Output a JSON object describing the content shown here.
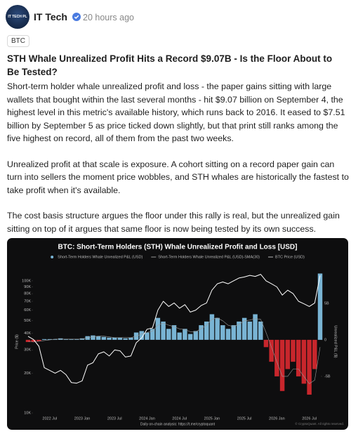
{
  "post": {
    "avatar_text": "IT TECH PL",
    "author": "IT Tech",
    "time": "20 hours ago",
    "tag": "BTC",
    "title": "STH Whale Unrealized Profit Hits a Record $9.07B - Is the Floor About to Be Tested?",
    "paragraphs": [
      "Short-term holder whale unrealized profit and loss - the paper gains sitting with large wallets that bought within the last several months - hit $9.07 billion on September 4, the highest level in this metric's available history, which runs back to 2016. It eased to $7.51 billion by September 5 as price ticked down slightly, but that print still ranks among the five highest on record, all of them from the past two weeks.",
      "Unrealized profit at that scale is exposure. A cohort sitting on a record paper gain can turn into sellers the moment price wobbles, and STH whales are historically the fastest to take profit when it's available.",
      "The cost basis structure argues the floor under this rally is real, but the unrealized gain sitting on top of it argues that same floor is now being tested by its own success."
    ]
  },
  "chart_data": {
    "type": "combo",
    "title": "BTC: Short-Term Holders (STH) Whale Unrealized Profit and Loss [USD]",
    "x": [
      null,
      null,
      null,
      null,
      "2022 Jul",
      null,
      null,
      null,
      null,
      null,
      "2023 Jan",
      null,
      null,
      null,
      null,
      null,
      "2023 Jul",
      null,
      null,
      null,
      null,
      null,
      "2024 Jan",
      null,
      null,
      null,
      null,
      null,
      "2024 Jul",
      null,
      null,
      null,
      null,
      null,
      "2025 Jan",
      null,
      null,
      null,
      null,
      null,
      "2025 Jul",
      null,
      null,
      null,
      null,
      null,
      "2026 Jan",
      null,
      null,
      null,
      null,
      null,
      "2026 Jul",
      null,
      null
    ],
    "series": [
      {
        "name": "Short-Term Holders Whale Unrealized P&L (USD)",
        "type": "bar",
        "axis": "y2",
        "color": "#79b4d4",
        "negative_color": "#c8262c",
        "values": [
          -300000000.0,
          -300000000.0,
          -200000000.0,
          100000000.0,
          100000000.0,
          100000000.0,
          200000000.0,
          100000000.0,
          100000000.0,
          100000000.0,
          200000000.0,
          500000000.0,
          600000000.0,
          500000000.0,
          400000000.0,
          300000000.0,
          300000000.0,
          300000000.0,
          200000000.0,
          300000000.0,
          1000000000.0,
          1200000000.0,
          1000000000.0,
          1500000000.0,
          3000000000.0,
          2500000000.0,
          1500000000.0,
          2000000000.0,
          1000000000.0,
          1500000000.0,
          800000000.0,
          1200000000.0,
          2000000000.0,
          2500000000.0,
          3500000000.0,
          3000000000.0,
          2000000000.0,
          1500000000.0,
          2000000000.0,
          2500000000.0,
          3000000000.0,
          2500000000.0,
          3500000000.0,
          2500000000.0,
          -1000000000.0,
          -3000000000.0,
          -5000000000.0,
          -7000000000.0,
          -4000000000.0,
          -3000000000.0,
          -5000000000.0,
          -6000000000.0,
          -7500000000.0,
          -4000000000.0,
          9070000000.0
        ]
      },
      {
        "name": "Short-Term Holders Whale Unrealized P&L (USD)-SMA(30)",
        "type": "line",
        "axis": "y2",
        "color": "#9a9a9a",
        "values": [
          -200000000.0,
          -300000000.0,
          -200000000.0,
          -100000000.0,
          0,
          100000000.0,
          100000000.0,
          100000000.0,
          100000000.0,
          100000000.0,
          100000000.0,
          300000000.0,
          400000000.0,
          500000000.0,
          500000000.0,
          400000000.0,
          300000000.0,
          300000000.0,
          300000000.0,
          300000000.0,
          500000000.0,
          800000000.0,
          1000000000.0,
          1200000000.0,
          2000000000.0,
          2300000000.0,
          2000000000.0,
          1800000000.0,
          1500000000.0,
          1400000000.0,
          1100000000.0,
          1100000000.0,
          1500000000.0,
          2000000000.0,
          2800000000.0,
          3000000000.0,
          2600000000.0,
          2000000000.0,
          1800000000.0,
          2100000000.0,
          2600000000.0,
          2700000000.0,
          2900000000.0,
          2800000000.0,
          1000000000.0,
          -1000000000.0,
          -3000000000.0,
          -5000000000.0,
          -5000000000.0,
          -4000000000.0,
          -4000000000.0,
          -5000000000.0,
          -6000000000.0,
          -5500000000.0,
          -1000000000.0
        ]
      },
      {
        "name": "BTC Price (USD)",
        "type": "line",
        "axis": "y",
        "color": "#ffffff",
        "values": [
          38000,
          36000,
          32000,
          22000,
          21000,
          20000,
          21000,
          19500,
          17000,
          16800,
          17500,
          23000,
          24000,
          28000,
          29000,
          27000,
          30000,
          29500,
          26500,
          27000,
          34000,
          37000,
          43000,
          44000,
          60000,
          70000,
          64000,
          68000,
          62000,
          66000,
          58000,
          60000,
          65000,
          68000,
          85000,
          95000,
          98000,
          95000,
          100000,
          105000,
          107000,
          110000,
          108000,
          112000,
          100000,
          95000,
          90000,
          78000,
          85000,
          80000,
          70000,
          67000,
          64000,
          68000,
          110000
        ]
      }
    ],
    "ylabel": "Price ($)",
    "y2label": "Unrealized P&L ($)",
    "yscale": "log",
    "ylim": [
      10000,
      120000
    ],
    "yticks": [
      {
        "value": 10000,
        "label": "10K"
      },
      {
        "value": 20000,
        "label": "20K"
      },
      {
        "value": 30000,
        "label": "30K"
      },
      {
        "value": 40000,
        "label": "40K"
      },
      {
        "value": 50000,
        "label": "50K"
      },
      {
        "value": 60000,
        "label": "60K"
      },
      {
        "value": 70000,
        "label": "70K"
      },
      {
        "value": 80000,
        "label": "80K"
      },
      {
        "value": 90000,
        "label": "90K"
      },
      {
        "value": 100000,
        "label": "100K"
      }
    ],
    "y2lim": [
      -10000000000.0,
      9500000000.0
    ],
    "y2ticks": [
      {
        "value": 5000000000.0,
        "label": "5B"
      },
      0,
      {
        "value": -5000000000.0,
        "label": "-5B"
      }
    ],
    "footer": "Daily on-chain analysis: https://t.me/cryptoquant",
    "source": "© CryptoQuant. All rights reserved."
  }
}
